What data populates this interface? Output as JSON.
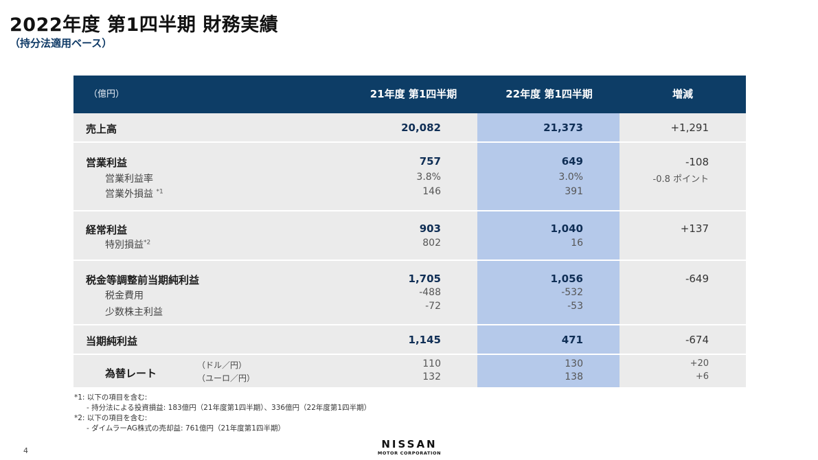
{
  "page": {
    "title": "2022年度 第1四半期 財務実績",
    "subtitle": "（持分法適用ベース）",
    "page_number": "4"
  },
  "table": {
    "unit": "（億円）",
    "col_fy21": "21年度 第1四半期",
    "col_fy22": "22年度 第1四半期",
    "col_change": "増減",
    "sales": {
      "label": "売上高",
      "fy21": "20,082",
      "fy22": "21,373",
      "change": "+1,291"
    },
    "operating": {
      "label": "営業利益",
      "fy21": "757",
      "fy22": "649",
      "change": "-108",
      "margin_label": "営業利益率",
      "margin_fy21": "3.8%",
      "margin_fy22": "3.0%",
      "margin_change": "-0.8 ポイント",
      "nonop_label": "営業外損益",
      "nonop_note": "*1",
      "nonop_fy21": "146",
      "nonop_fy22": "391"
    },
    "ordinary": {
      "label": "経常利益",
      "fy21": "903",
      "fy22": "1,040",
      "change": "+137",
      "extra_label": "特別損益",
      "extra_note": "*2",
      "extra_fy21": "802",
      "extra_fy22": "16"
    },
    "pretax": {
      "label": "税金等調整前当期純利益",
      "fy21": "1,705",
      "fy22": "1,056",
      "change": "-649",
      "tax_label": "税金費用",
      "tax_fy21": "-488",
      "tax_fy22": "-532",
      "minority_label": "少数株主利益",
      "minority_fy21": "-72",
      "minority_fy22": "-53"
    },
    "net": {
      "label": "当期純利益",
      "fy21": "1,145",
      "fy22": "471",
      "change": "-674"
    },
    "fx": {
      "label": "為替レート",
      "usd_label": "（ドル／円）",
      "eur_label": "（ユーロ／円）",
      "usd_fy21": "110",
      "usd_fy22": "130",
      "usd_change": "+20",
      "eur_fy21": "132",
      "eur_fy22": "138",
      "eur_change": "+6"
    }
  },
  "notes": {
    "n1_head": "*1: 以下の項目を含む:",
    "n1_item": "- 持分法による投資損益: 183億円（21年度第1四半期）、336億円（22年度第1四半期）",
    "n2_head": "*2: 以下の項目を含む:",
    "n2_item": "- ダイムラーAG株式の売却益: 761億円（21年度第1四半期）"
  },
  "logo": {
    "name": "NISSAN",
    "tagline": "MOTOR CORPORATION"
  },
  "colors": {
    "header_bg": "#0d3d66",
    "row_bg": "#ebebeb",
    "highlight": "#b5c9ea"
  }
}
